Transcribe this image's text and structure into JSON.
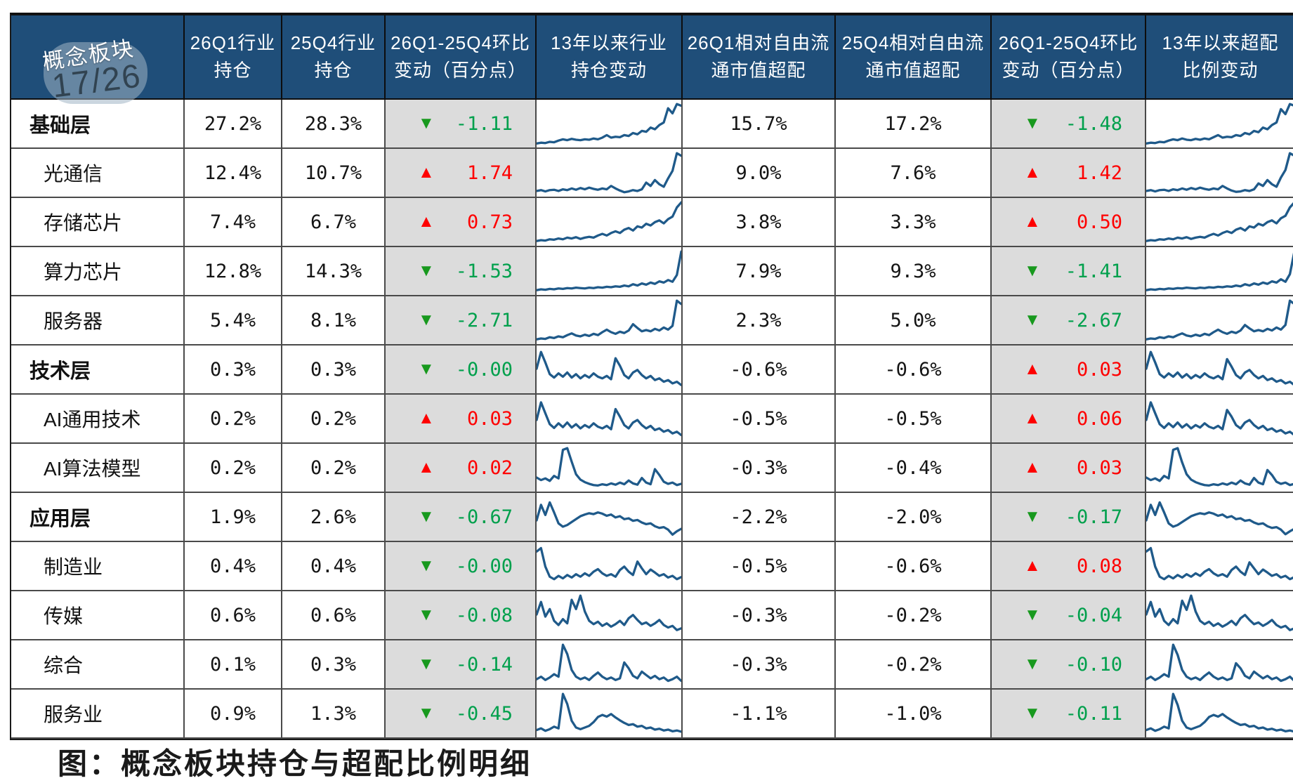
{
  "overlay": {
    "page_indicator": "17/26"
  },
  "bottom_caption": "图：概念板块持仓与超配比例明细",
  "colors": {
    "header_bg": "#1F4E79",
    "header_text": "#ffffff",
    "spark_line": "#1F5A8A",
    "up_red": "#FE0000",
    "down_triangle_green": "#18991E",
    "down_text_green": "#00A04C",
    "chg_cell_gray": "#DCDCDC"
  },
  "chart_data": {
    "type": "table",
    "title": "",
    "columns": [
      "概念板块",
      "26Q1行业\n持仓",
      "25Q4行业\n持仓",
      "26Q1-25Q4环比\n变动（百分点）",
      "13年以来行业\n持仓变动",
      "26Q1相对自由流\n通市值超配",
      "25Q4相对自由流\n通市值超配",
      "26Q1-25Q4环比\n变动（百分点）",
      "13年以来超配\n比例变动"
    ],
    "sparkline_note": "line charts, values normalized 0-100 of cell height",
    "rows": [
      {
        "label": "基础层",
        "is_group": true,
        "industry_q1": "27.2%",
        "industry_q4": "28.3%",
        "industry_chg": "-1.11",
        "industry_chg_dir": "down",
        "overweight_q1": "15.7%",
        "overweight_q4": "17.2%",
        "overweight_chg": "-1.48",
        "overweight_chg_dir": "down",
        "spark_industry": [
          6,
          8,
          7,
          10,
          9,
          13,
          16,
          14,
          17,
          15,
          14,
          16,
          15,
          18,
          16,
          20,
          26,
          20,
          22,
          21,
          26,
          24,
          31,
          28,
          36,
          34,
          44,
          40,
          50,
          56,
          90,
          78,
          100,
          96
        ],
        "spark_overweight": [
          6,
          8,
          7,
          10,
          9,
          13,
          16,
          14,
          18,
          15,
          14,
          17,
          15,
          18,
          16,
          21,
          26,
          20,
          22,
          21,
          26,
          24,
          31,
          28,
          36,
          33,
          44,
          40,
          50,
          56,
          88,
          76,
          100,
          96
        ]
      },
      {
        "label": "光通信",
        "is_group": false,
        "industry_q1": "12.4%",
        "industry_q4": "10.7%",
        "industry_chg": "1.74",
        "industry_chg_dir": "up",
        "overweight_q1": "9.0%",
        "overweight_q4": "7.6%",
        "overweight_chg": "1.42",
        "overweight_chg_dir": "up",
        "spark_industry": [
          10,
          12,
          9,
          12,
          13,
          10,
          14,
          12,
          16,
          13,
          17,
          14,
          18,
          15,
          13,
          16,
          14,
          22,
          16,
          11,
          7,
          9,
          12,
          10,
          14,
          30,
          22,
          36,
          26,
          20,
          40,
          58,
          100,
          94
        ],
        "spark_overweight": [
          10,
          12,
          9,
          12,
          13,
          10,
          14,
          12,
          16,
          13,
          17,
          14,
          18,
          15,
          13,
          16,
          14,
          22,
          16,
          11,
          8,
          9,
          12,
          10,
          14,
          28,
          22,
          36,
          26,
          20,
          42,
          60,
          100,
          94
        ]
      },
      {
        "label": "存储芯片",
        "is_group": false,
        "industry_q1": "7.4%",
        "industry_q4": "6.7%",
        "industry_chg": "0.73",
        "industry_chg_dir": "up",
        "overweight_q1": "3.8%",
        "overweight_q4": "3.3%",
        "overweight_chg": "0.50",
        "overweight_chg_dir": "up",
        "spark_industry": [
          8,
          10,
          9,
          12,
          11,
          14,
          12,
          16,
          14,
          17,
          13,
          16,
          18,
          16,
          21,
          25,
          21,
          27,
          31,
          27,
          35,
          39,
          33,
          43,
          40,
          49,
          45,
          53,
          57,
          50,
          60,
          66,
          88,
          100
        ],
        "spark_overweight": [
          8,
          10,
          9,
          12,
          11,
          14,
          12,
          16,
          14,
          17,
          13,
          16,
          18,
          16,
          21,
          25,
          21,
          27,
          31,
          27,
          35,
          39,
          33,
          43,
          40,
          49,
          45,
          53,
          57,
          50,
          62,
          68,
          88,
          100
        ]
      },
      {
        "label": "算力芯片",
        "is_group": false,
        "industry_q1": "12.8%",
        "industry_q4": "14.3%",
        "industry_chg": "-1.53",
        "industry_chg_dir": "down",
        "overweight_q1": "7.9%",
        "overweight_q4": "9.3%",
        "overweight_chg": "-1.41",
        "overweight_chg_dir": "down",
        "spark_industry": [
          8,
          10,
          9,
          11,
          10,
          12,
          11,
          13,
          12,
          14,
          13,
          12,
          14,
          13,
          15,
          14,
          16,
          15,
          17,
          16,
          19,
          17,
          22,
          19,
          24,
          21,
          26,
          23,
          29,
          26,
          32,
          28,
          44,
          100
        ],
        "spark_overweight": [
          8,
          10,
          9,
          11,
          10,
          12,
          11,
          13,
          12,
          14,
          13,
          12,
          14,
          13,
          15,
          14,
          16,
          15,
          17,
          16,
          19,
          17,
          22,
          19,
          24,
          21,
          26,
          23,
          29,
          26,
          34,
          28,
          46,
          100
        ]
      },
      {
        "label": "服务器",
        "is_group": false,
        "industry_q1": "5.4%",
        "industry_q4": "8.1%",
        "industry_chg": "-2.71",
        "industry_chg_dir": "down",
        "overweight_q1": "2.3%",
        "overweight_q4": "5.0%",
        "overweight_chg": "-2.67",
        "overweight_chg_dir": "down",
        "spark_industry": [
          8,
          10,
          9,
          13,
          11,
          15,
          13,
          18,
          22,
          17,
          15,
          19,
          16,
          21,
          18,
          25,
          31,
          25,
          21,
          26,
          23,
          29,
          44,
          35,
          27,
          30,
          27,
          33,
          29,
          36,
          31,
          40,
          100,
          92
        ],
        "spark_overweight": [
          8,
          10,
          9,
          13,
          11,
          15,
          13,
          18,
          22,
          17,
          15,
          19,
          16,
          21,
          18,
          25,
          31,
          25,
          21,
          26,
          23,
          29,
          42,
          34,
          27,
          30,
          27,
          33,
          29,
          36,
          31,
          42,
          100,
          92
        ]
      },
      {
        "label": "技术层",
        "is_group": true,
        "industry_q1": "0.3%",
        "industry_q4": "0.3%",
        "industry_chg": "-0.00",
        "industry_chg_dir": "down",
        "overweight_q1": "-0.6%",
        "overweight_q4": "-0.6%",
        "overweight_chg": "0.03",
        "overweight_chg_dir": "up",
        "spark_industry": [
          55,
          95,
          70,
          42,
          34,
          44,
          36,
          46,
          34,
          42,
          32,
          40,
          34,
          44,
          36,
          32,
          38,
          30,
          80,
          62,
          40,
          32,
          46,
          52,
          40,
          32,
          38,
          28,
          32,
          24,
          28,
          20,
          24,
          16
        ],
        "spark_overweight": [
          55,
          95,
          70,
          42,
          34,
          44,
          36,
          46,
          34,
          42,
          32,
          40,
          34,
          44,
          36,
          32,
          38,
          30,
          78,
          60,
          40,
          32,
          46,
          52,
          40,
          32,
          38,
          28,
          32,
          24,
          28,
          20,
          24,
          16
        ]
      },
      {
        "label": "AI通用技术",
        "is_group": false,
        "industry_q1": "0.2%",
        "industry_q4": "0.2%",
        "industry_chg": "0.03",
        "industry_chg_dir": "up",
        "overweight_q1": "-0.5%",
        "overweight_q4": "-0.5%",
        "overweight_chg": "0.06",
        "overweight_chg_dir": "up",
        "spark_industry": [
          50,
          92,
          66,
          40,
          31,
          42,
          33,
          44,
          32,
          40,
          30,
          38,
          32,
          42,
          34,
          30,
          36,
          28,
          76,
          58,
          38,
          30,
          44,
          50,
          38,
          30,
          36,
          26,
          30,
          22,
          26,
          18,
          22,
          14
        ],
        "spark_overweight": [
          50,
          92,
          66,
          40,
          31,
          42,
          33,
          44,
          32,
          40,
          30,
          38,
          32,
          42,
          34,
          30,
          36,
          28,
          74,
          58,
          38,
          30,
          44,
          50,
          38,
          30,
          36,
          26,
          30,
          22,
          26,
          18,
          22,
          14
        ]
      },
      {
        "label": "AI算法模型",
        "is_group": false,
        "industry_q1": "0.2%",
        "industry_q4": "0.2%",
        "industry_chg": "0.02",
        "industry_chg_dir": "up",
        "overweight_q1": "-0.3%",
        "overweight_q4": "-0.4%",
        "overweight_chg": "0.03",
        "overweight_chg_dir": "up",
        "spark_industry": [
          30,
          24,
          28,
          22,
          34,
          28,
          96,
          100,
          68,
          38,
          25,
          19,
          15,
          12,
          11,
          14,
          12,
          16,
          13,
          18,
          14,
          23,
          16,
          13,
          29,
          18,
          14,
          50,
          36,
          20,
          15,
          18,
          12,
          15
        ],
        "spark_overweight": [
          30,
          24,
          28,
          22,
          34,
          28,
          96,
          100,
          66,
          38,
          25,
          19,
          15,
          12,
          11,
          14,
          12,
          16,
          13,
          18,
          14,
          23,
          16,
          13,
          29,
          18,
          14,
          48,
          36,
          20,
          15,
          18,
          12,
          15
        ]
      },
      {
        "label": "应用层",
        "is_group": true,
        "industry_q1": "1.9%",
        "industry_q4": "2.6%",
        "industry_chg": "-0.67",
        "industry_chg_dir": "down",
        "overweight_q1": "-2.2%",
        "overweight_q4": "-2.0%",
        "overweight_chg": "-0.17",
        "overweight_chg_dir": "down",
        "spark_industry": [
          45,
          82,
          58,
          88,
          64,
          38,
          30,
          34,
          41,
          48,
          55,
          59,
          62,
          60,
          64,
          61,
          56,
          59,
          52,
          55,
          48,
          50,
          44,
          46,
          40,
          36,
          38,
          31,
          27,
          29,
          23,
          11,
          19,
          25
        ],
        "spark_overweight": [
          45,
          82,
          58,
          88,
          64,
          38,
          30,
          34,
          41,
          48,
          55,
          59,
          62,
          60,
          64,
          61,
          56,
          59,
          52,
          55,
          48,
          50,
          44,
          46,
          40,
          36,
          38,
          31,
          27,
          29,
          23,
          12,
          19,
          25
        ]
      },
      {
        "label": "制造业",
        "is_group": false,
        "industry_q1": "0.4%",
        "industry_q4": "0.4%",
        "industry_chg": "-0.00",
        "industry_chg_dir": "down",
        "overweight_q1": "-0.5%",
        "overweight_q4": "-0.6%",
        "overweight_chg": "0.08",
        "overweight_chg_dir": "up",
        "spark_industry": [
          88,
          96,
          52,
          28,
          22,
          30,
          24,
          32,
          26,
          34,
          28,
          36,
          30,
          40,
          46,
          36,
          30,
          34,
          28,
          44,
          52,
          40,
          32,
          64,
          48,
          34,
          45,
          38,
          30,
          34,
          26,
          30,
          22,
          27
        ],
        "spark_overweight": [
          88,
          96,
          52,
          28,
          22,
          30,
          24,
          32,
          26,
          34,
          28,
          36,
          30,
          40,
          46,
          36,
          30,
          34,
          28,
          44,
          52,
          40,
          32,
          62,
          48,
          34,
          45,
          38,
          30,
          34,
          26,
          30,
          22,
          27
        ]
      },
      {
        "label": "传媒",
        "is_group": false,
        "industry_q1": "0.6%",
        "industry_q4": "0.6%",
        "industry_chg": "-0.08",
        "industry_chg_dir": "down",
        "overweight_q1": "-0.3%",
        "overweight_q4": "-0.2%",
        "overweight_chg": "-0.04",
        "overweight_chg_dir": "down",
        "spark_industry": [
          55,
          85,
          50,
          68,
          40,
          30,
          44,
          34,
          90,
          68,
          100,
          62,
          40,
          32,
          38,
          28,
          34,
          26,
          32,
          40,
          30,
          46,
          54,
          42,
          32,
          36,
          28,
          34,
          42,
          30,
          24,
          28,
          18,
          22
        ],
        "spark_overweight": [
          55,
          85,
          50,
          68,
          40,
          30,
          44,
          34,
          88,
          66,
          100,
          62,
          40,
          32,
          38,
          28,
          34,
          26,
          32,
          40,
          30,
          46,
          54,
          42,
          32,
          36,
          28,
          34,
          42,
          30,
          24,
          28,
          18,
          22
        ]
      },
      {
        "label": "综合",
        "is_group": false,
        "industry_q1": "0.1%",
        "industry_q4": "0.3%",
        "industry_chg": "-0.14",
        "industry_chg_dir": "down",
        "overweight_q1": "-0.3%",
        "overweight_q4": "-0.2%",
        "overweight_chg": "-0.10",
        "overweight_chg_dir": "down",
        "spark_industry": [
          18,
          24,
          16,
          22,
          30,
          24,
          100,
          78,
          40,
          24,
          18,
          22,
          16,
          26,
          34,
          24,
          18,
          22,
          16,
          20,
          58,
          44,
          26,
          20,
          36,
          28,
          20,
          26,
          18,
          22,
          14,
          18,
          24,
          14
        ],
        "spark_overweight": [
          18,
          24,
          16,
          22,
          30,
          24,
          100,
          76,
          40,
          24,
          18,
          22,
          16,
          26,
          34,
          24,
          18,
          22,
          16,
          20,
          56,
          44,
          26,
          20,
          36,
          28,
          20,
          26,
          18,
          22,
          14,
          18,
          24,
          14
        ]
      },
      {
        "label": "服务业",
        "is_group": false,
        "industry_q1": "0.9%",
        "industry_q4": "1.3%",
        "industry_chg": "-0.45",
        "industry_chg_dir": "down",
        "overweight_q1": "-1.1%",
        "overweight_q4": "-1.0%",
        "overweight_chg": "-0.11",
        "overweight_chg_dir": "down",
        "spark_industry": [
          14,
          18,
          12,
          16,
          22,
          18,
          100,
          76,
          36,
          20,
          16,
          20,
          24,
          33,
          45,
          50,
          46,
          52,
          44,
          37,
          31,
          26,
          28,
          22,
          24,
          18,
          20,
          15,
          17,
          13,
          15,
          11,
          13,
          10
        ],
        "spark_overweight": [
          14,
          18,
          12,
          16,
          22,
          18,
          100,
          74,
          36,
          20,
          16,
          20,
          24,
          33,
          45,
          50,
          46,
          52,
          44,
          37,
          31,
          26,
          28,
          22,
          24,
          18,
          20,
          15,
          17,
          13,
          15,
          11,
          13,
          10
        ]
      }
    ]
  }
}
